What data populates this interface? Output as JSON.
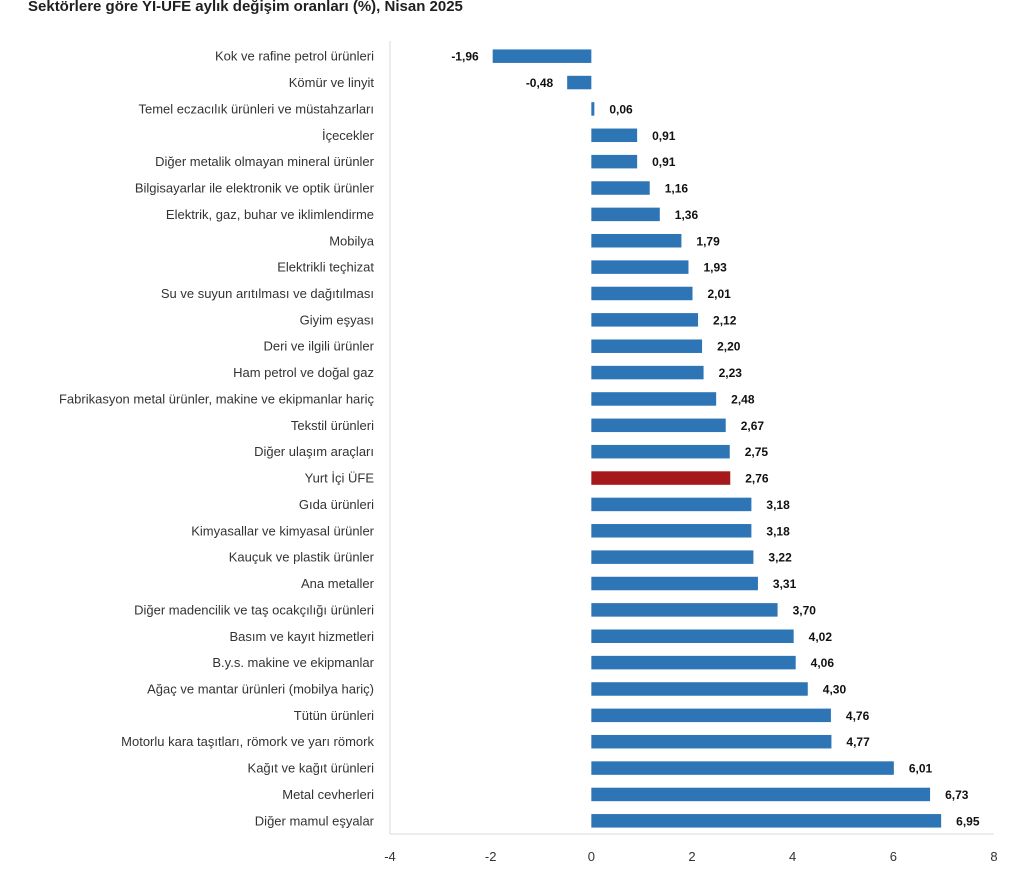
{
  "chart_data": {
    "type": "bar",
    "orientation": "horizontal",
    "title": "Sektörlere göre Yİ-ÜFE aylık değişim oranları (%), Nisan 2025",
    "categories": [
      "Kok ve rafine petrol ürünleri",
      "Kömür ve linyit",
      "Temel eczacılık ürünleri ve müstahzarları",
      "İçecekler",
      "Diğer metalik olmayan mineral ürünler",
      "Bilgisayarlar ile elektronik ve optik ürünler",
      "Elektrik, gaz, buhar ve iklimlendirme",
      "Mobilya",
      "Elektrikli teçhizat",
      "Su ve suyun arıtılması ve dağıtılması",
      "Giyim eşyası",
      "Deri ve ilgili ürünler",
      "Ham petrol ve doğal gaz",
      "Fabrikasyon metal ürünler, makine ve ekipmanlar hariç",
      "Tekstil ürünleri",
      "Diğer ulaşım araçları",
      "Yurt İçi ÜFE",
      "Gıda ürünleri",
      "Kimyasallar ve kimyasal ürünler",
      "Kauçuk ve plastik ürünler",
      "Ana metaller",
      "Diğer madencilik ve taş ocakçılığı ürünleri",
      "Basım ve kayıt hizmetleri",
      "B.y.s. makine ve ekipmanlar",
      "Ağaç ve mantar ürünleri (mobilya hariç)",
      "Tütün ürünleri",
      "Motorlu kara taşıtları, römork ve yarı römork",
      "Kağıt ve kağıt ürünleri",
      "Metal cevherleri",
      "Diğer mamul eşyalar"
    ],
    "values": [
      -1.96,
      -0.48,
      0.06,
      0.91,
      0.91,
      1.16,
      1.36,
      1.79,
      1.93,
      2.01,
      2.12,
      2.2,
      2.23,
      2.48,
      2.67,
      2.75,
      2.76,
      3.18,
      3.18,
      3.22,
      3.31,
      3.7,
      4.02,
      4.06,
      4.3,
      4.76,
      4.77,
      6.01,
      6.73,
      6.95
    ],
    "value_labels": [
      "-1,96",
      "-0,48",
      "0,06",
      "0,91",
      "0,91",
      "1,16",
      "1,36",
      "1,79",
      "1,93",
      "2,01",
      "2,12",
      "2,20",
      "2,23",
      "2,48",
      "2,67",
      "2,75",
      "2,76",
      "3,18",
      "3,18",
      "3,22",
      "3,31",
      "3,70",
      "4,02",
      "4,06",
      "4,30",
      "4,76",
      "4,77",
      "6,01",
      "6,73",
      "6,95"
    ],
    "highlight_category": "Yurt İçi ÜFE",
    "xlim": [
      -4,
      8
    ],
    "xticks": [
      -4,
      -2,
      0,
      2,
      4,
      6,
      8
    ],
    "xtick_labels": [
      "-4",
      "-2",
      "0",
      "2",
      "4",
      "6",
      "8"
    ],
    "xlabel": "",
    "ylabel": "",
    "grid": false,
    "legend": "none",
    "colors": {
      "bar": "#2e75b6",
      "highlight": "#a5191c",
      "axis": "#d9d9d9"
    }
  }
}
